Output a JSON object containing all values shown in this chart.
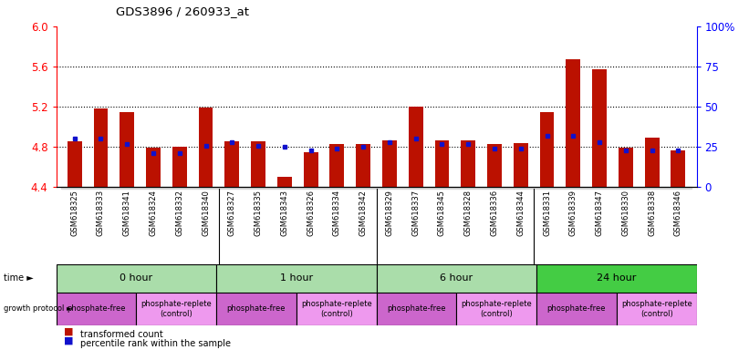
{
  "title": "GDS3896 / 260933_at",
  "samples": [
    "GSM618325",
    "GSM618333",
    "GSM618341",
    "GSM618324",
    "GSM618332",
    "GSM618340",
    "GSM618327",
    "GSM618335",
    "GSM618343",
    "GSM618326",
    "GSM618334",
    "GSM618342",
    "GSM618329",
    "GSM618337",
    "GSM618345",
    "GSM618328",
    "GSM618336",
    "GSM618344",
    "GSM618331",
    "GSM618339",
    "GSM618347",
    "GSM618330",
    "GSM618338",
    "GSM618346"
  ],
  "transformed_count": [
    4.86,
    5.18,
    5.15,
    4.79,
    4.8,
    5.19,
    4.86,
    4.86,
    4.5,
    4.75,
    4.83,
    4.83,
    4.87,
    5.2,
    4.87,
    4.87,
    4.83,
    4.84,
    5.15,
    5.67,
    5.57,
    4.79,
    4.89,
    4.77
  ],
  "percentile_rank": [
    30,
    30,
    27,
    21,
    21,
    26,
    28,
    26,
    25,
    23,
    24,
    25,
    28,
    30,
    27,
    27,
    24,
    24,
    32,
    32,
    28,
    23,
    23,
    23
  ],
  "ymin": 4.4,
  "ymax": 6.0,
  "yticks_left": [
    4.4,
    4.8,
    5.2,
    5.6,
    6.0
  ],
  "yticks_right": [
    0,
    25,
    50,
    75,
    100
  ],
  "dotted_lines": [
    4.8,
    5.2,
    5.6
  ],
  "time_groups": [
    {
      "label": "0 hour",
      "start": 0,
      "end": 6,
      "color": "#aaddaa"
    },
    {
      "label": "1 hour",
      "start": 6,
      "end": 12,
      "color": "#aaddaa"
    },
    {
      "label": "6 hour",
      "start": 12,
      "end": 18,
      "color": "#aaddaa"
    },
    {
      "label": "24 hour",
      "start": 18,
      "end": 24,
      "color": "#44cc44"
    }
  ],
  "protocol_groups": [
    {
      "label": "phosphate-free",
      "start": 0,
      "end": 3,
      "color": "#cc66cc"
    },
    {
      "label": "phosphate-replete\n(control)",
      "start": 3,
      "end": 6,
      "color": "#ee99ee"
    },
    {
      "label": "phosphate-free",
      "start": 6,
      "end": 9,
      "color": "#cc66cc"
    },
    {
      "label": "phosphate-replete\n(control)",
      "start": 9,
      "end": 12,
      "color": "#ee99ee"
    },
    {
      "label": "phosphate-free",
      "start": 12,
      "end": 15,
      "color": "#cc66cc"
    },
    {
      "label": "phosphate-replete\n(control)",
      "start": 15,
      "end": 18,
      "color": "#ee99ee"
    },
    {
      "label": "phosphate-free",
      "start": 18,
      "end": 21,
      "color": "#cc66cc"
    },
    {
      "label": "phosphate-replete\n(control)",
      "start": 21,
      "end": 24,
      "color": "#ee99ee"
    }
  ],
  "bar_color": "#bb1100",
  "dot_color": "#1111cc",
  "bar_width": 0.55,
  "xtick_bg": "#d8d8d8"
}
